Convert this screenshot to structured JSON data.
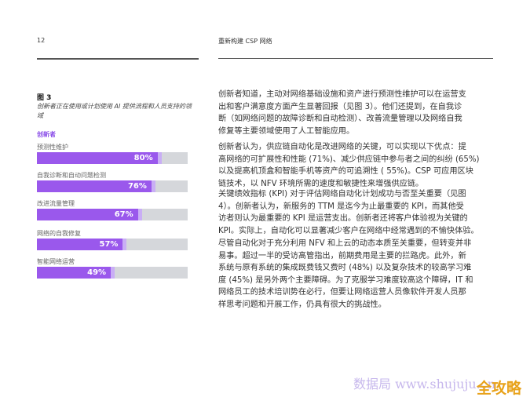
{
  "header": {
    "page_number": "12",
    "section_title": "重新构建 CSP 网络"
  },
  "figure": {
    "number": "图 3",
    "caption": "创新者正在使用或计划使用 AI 提供流程和人员支持的领域",
    "legend": "创新者",
    "colors": {
      "fill": "#9a58ec",
      "track": "#d5d7db",
      "legend": "#8b4fe8"
    },
    "chart_data": {
      "type": "bar",
      "orientation": "horizontal",
      "categories": [
        "预测性维护",
        "自我诊断和自动问题检测",
        "改进流量管理",
        "网络的自我修复",
        "智能网络运营"
      ],
      "series": [
        {
          "name": "创新者",
          "values": [
            80,
            76,
            67,
            57,
            49
          ]
        }
      ],
      "value_labels": [
        "80%",
        "76%",
        "67%",
        "57%",
        "49%"
      ],
      "xlim": [
        0,
        100
      ]
    }
  },
  "paragraphs": [
    [
      "创新者知道，主动对网络基础设施和资产进行预测性维护可以在运营支",
      "出和客户满意度方面产生显著回报（见图 3）。他们还提到，在自我诊",
      "断（如网络问题的故障诊断和自动检测）、改善流量管理以及网络自我",
      "修复等主要领域使用了人工智能应用。"
    ],
    [
      "创新者认为，供应链自动化是改进网络的关键，可以实现以下优点：提",
      "高网络的可扩展性和性能 (71%)、减少供应链中参与者之间的纠纷 (65%)",
      "以及提高机顶盒和智能手机等资产的可追溯性 ( 55%)。CSP 可应用区块",
      "链技术，以 NFV 环境所需的速度和敏捷性来增强供应链。"
    ],
    [
      "关键绩效指标 (KPI) 对于评估网络自动化计划成功与否至关重要（见图",
      "4）。创新者认为，新服务的 TTM 是迄今为止最重要的 KPI，而其他受",
      "访者则认为最重要的 KPI 是运营支出。创新者还将客户体验视为关键的",
      "KPI。实际上，自动化可以显著减少客户在网络中经常遇到的不愉快体验。"
    ],
    [
      "尽管自动化对于充分利用 NFV 和上云的动态本质至关重要，但转变并非",
      "易事。超过一半的受访高管指出，前期费用是主要的拦路虎。此外，新",
      "系统与原有系统的集成既费钱又费时 (48%) 以及复杂技术的较高学习难",
      "度 (45%) 是另外两个主要障碍。为了克服学习难度较高这个障碍，IT 和",
      "网络员工的技术培训势在必行，但要让网络运营人员像软件开发人员那",
      "样思考问题和开展工作，仍具有很大的挑战性。"
    ]
  ],
  "watermark": {
    "text": "数据局 www.shujuju.cn",
    "logo": "全攻略"
  }
}
